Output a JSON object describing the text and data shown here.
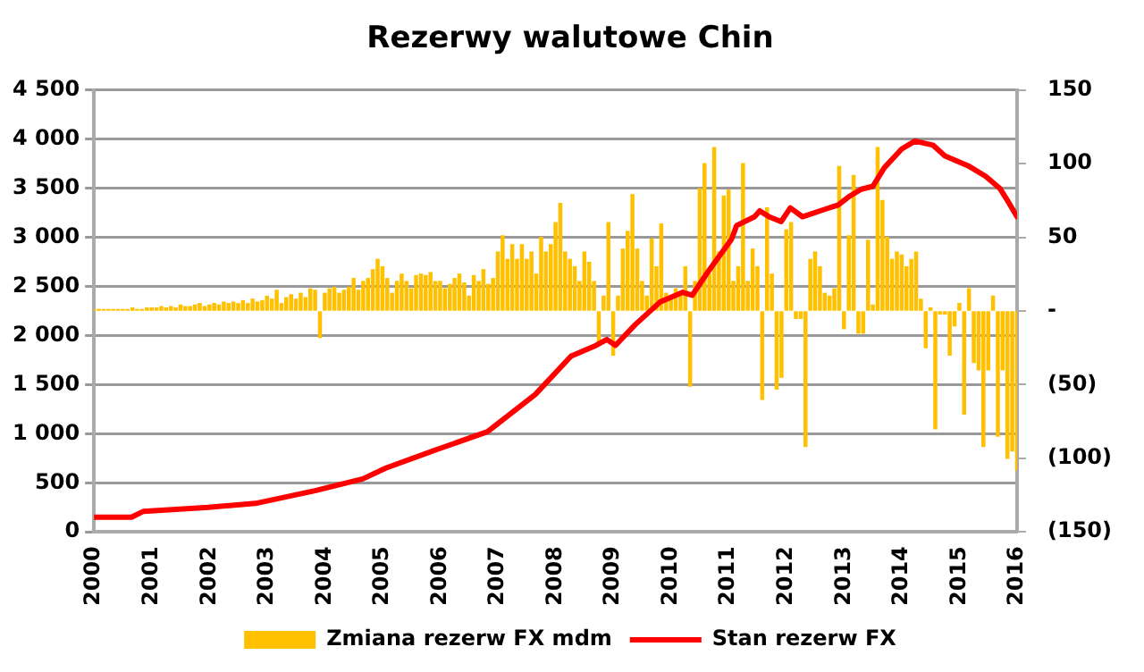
{
  "chart_data": {
    "type": "bar",
    "title": "Rezerwy walutowe Chin",
    "xlim": [
      2000,
      2016
    ],
    "xticks": [
      2000,
      2001,
      2002,
      2003,
      2004,
      2005,
      2006,
      2007,
      2008,
      2009,
      2010,
      2011,
      2012,
      2013,
      2014,
      2015,
      2016
    ],
    "ylim": [
      0,
      4500
    ],
    "yticks": [
      0,
      500,
      {
        "value": 1000,
        "label": "1 000"
      },
      {
        "value": 1500,
        "label": "1 500"
      },
      {
        "value": 2000,
        "label": "2 000"
      },
      {
        "value": 2500,
        "label": "2 500"
      },
      {
        "value": 3000,
        "label": "3 000"
      },
      {
        "value": 3500,
        "label": "3 500"
      },
      {
        "value": 4000,
        "label": "4 000"
      },
      {
        "value": 4500,
        "label": "4 500"
      }
    ],
    "y2lim": [
      -150,
      150
    ],
    "y2ticks": [
      {
        "value": -150,
        "label": "(150)"
      },
      {
        "value": -100,
        "label": "(100)"
      },
      {
        "value": -50,
        "label": "(50)"
      },
      {
        "value": 0,
        "label": "-"
      },
      50,
      100,
      150
    ],
    "grid": "y",
    "legend": "bottom",
    "series": [
      {
        "name": "Zmiana rezerw FX mdm",
        "axis": "y2",
        "color": "#ffc000",
        "x": [
          2000,
          2000.083,
          2000.167,
          2000.25,
          2000.333,
          2000.417,
          2000.5,
          2000.583,
          2000.667,
          2000.75,
          2000.833,
          2000.917,
          2001,
          2001.083,
          2001.167,
          2001.25,
          2001.333,
          2001.417,
          2001.5,
          2001.583,
          2001.667,
          2001.75,
          2001.833,
          2001.917,
          2002,
          2002.083,
          2002.167,
          2002.25,
          2002.333,
          2002.417,
          2002.5,
          2002.583,
          2002.667,
          2002.75,
          2002.833,
          2002.917,
          2003,
          2003.083,
          2003.167,
          2003.25,
          2003.333,
          2003.417,
          2003.5,
          2003.583,
          2003.667,
          2003.75,
          2003.833,
          2003.917,
          2004,
          2004.083,
          2004.167,
          2004.25,
          2004.333,
          2004.417,
          2004.5,
          2004.583,
          2004.667,
          2004.75,
          2004.833,
          2004.917,
          2005,
          2005.083,
          2005.167,
          2005.25,
          2005.333,
          2005.417,
          2005.5,
          2005.583,
          2005.667,
          2005.75,
          2005.833,
          2005.917,
          2006,
          2006.083,
          2006.167,
          2006.25,
          2006.333,
          2006.417,
          2006.5,
          2006.583,
          2006.667,
          2006.75,
          2006.833,
          2006.917,
          2007,
          2007.083,
          2007.167,
          2007.25,
          2007.333,
          2007.417,
          2007.5,
          2007.583,
          2007.667,
          2007.75,
          2007.833,
          2007.917,
          2008,
          2008.083,
          2008.167,
          2008.25,
          2008.333,
          2008.417,
          2008.5,
          2008.583,
          2008.667,
          2008.75,
          2008.833,
          2008.917,
          2009,
          2009.083,
          2009.167,
          2009.25,
          2009.333,
          2009.417,
          2009.5,
          2009.583,
          2009.667,
          2009.75,
          2009.833,
          2009.917,
          2010,
          2010.083,
          2010.167,
          2010.25,
          2010.333,
          2010.417,
          2010.5,
          2010.583,
          2010.667,
          2010.75,
          2010.833,
          2010.917,
          2011,
          2011.083,
          2011.167,
          2011.25,
          2011.333,
          2011.417,
          2011.5,
          2011.583,
          2011.667,
          2011.75,
          2011.833,
          2011.917,
          2012,
          2012.083,
          2012.167,
          2012.25,
          2012.333,
          2012.417,
          2012.5,
          2012.583,
          2012.667,
          2012.75,
          2012.833,
          2012.917,
          2013,
          2013.083,
          2013.167,
          2013.25,
          2013.333,
          2013.417,
          2013.5,
          2013.583,
          2013.667,
          2013.75,
          2013.833,
          2013.917,
          2014,
          2014.083,
          2014.167,
          2014.25,
          2014.333,
          2014.417,
          2014.5,
          2014.583,
          2014.667,
          2014.75,
          2014.833,
          2014.917,
          2015,
          2015.083,
          2015.167,
          2015.25,
          2015.333,
          2015.417,
          2015.5,
          2015.583,
          2015.667,
          2015.75,
          2015.833,
          2015.917,
          2016
        ],
        "values": [
          1,
          1,
          1,
          1,
          1,
          1,
          1,
          1,
          2,
          1,
          1,
          2,
          2,
          2,
          3,
          2,
          3,
          2,
          4,
          3,
          3,
          4,
          5,
          3,
          4,
          5,
          4,
          6,
          5,
          6,
          5,
          7,
          5,
          8,
          6,
          7,
          10,
          8,
          14,
          5,
          9,
          11,
          8,
          12,
          9,
          15,
          14,
          -18,
          12,
          15,
          16,
          12,
          14,
          16,
          22,
          14,
          20,
          22,
          28,
          35,
          30,
          22,
          12,
          20,
          25,
          20,
          15,
          24,
          25,
          24,
          26,
          20,
          20,
          15,
          18,
          22,
          25,
          19,
          10,
          24,
          20,
          28,
          18,
          22,
          40,
          51,
          35,
          45,
          35,
          45,
          35,
          40,
          25,
          50,
          40,
          45,
          60,
          73,
          40,
          35,
          30,
          20,
          40,
          33,
          20,
          -23,
          10,
          60,
          -30,
          10,
          42,
          54,
          79,
          42,
          20,
          10,
          49,
          30,
          59,
          12,
          10,
          15,
          12,
          30,
          -51,
          20,
          83,
          100,
          25,
          111,
          40,
          78,
          82,
          20,
          30,
          100,
          20,
          42,
          30,
          -60,
          70,
          25,
          -53,
          -45,
          55,
          60,
          -5,
          -5,
          -92,
          35,
          40,
          30,
          12,
          10,
          15,
          98,
          -12,
          51,
          92,
          -15,
          -15,
          48,
          4,
          111,
          75,
          50,
          35,
          40,
          38,
          30,
          35,
          40,
          8,
          -25,
          2,
          -80,
          -2,
          -2,
          -30,
          -10,
          5,
          -70,
          15,
          -35,
          -40,
          -92,
          -40,
          10,
          -85,
          -40,
          -100,
          -95,
          -108
        ]
      },
      {
        "name": "Stan rezerw FX",
        "type": "line",
        "color": "#ff0000",
        "x": [
          2000,
          2000.65,
          2000.86,
          2001.98,
          2002.8,
          2003.83,
          2004.66,
          2005.06,
          2005.9,
          2006.82,
          2007.65,
          2008.27,
          2008.67,
          2008.89,
          2009.04,
          2009.38,
          2009.81,
          2010.2,
          2010.37,
          2010.62,
          2011.05,
          2011.14,
          2011.45,
          2011.54,
          2011.7,
          2011.91,
          2012.07,
          2012.28,
          2012.69,
          2012.9,
          2013.1,
          2013.3,
          2013.5,
          2013.7,
          2014,
          2014.23,
          2014.54,
          2014.75,
          2015.15,
          2015.46,
          2015.7,
          2015.86,
          2016
        ],
        "values": [
          150,
          150,
          210,
          250,
          290,
          420,
          540,
          650,
          830,
          1020,
          1400,
          1790,
          1890,
          1960,
          1900,
          2110,
          2340,
          2440,
          2410,
          2630,
          2980,
          3120,
          3210,
          3270,
          3210,
          3160,
          3300,
          3210,
          3290,
          3330,
          3420,
          3490,
          3520,
          3710,
          3900,
          3980,
          3940,
          3830,
          3730,
          3620,
          3500,
          3350,
          3210
        ]
      }
    ]
  }
}
